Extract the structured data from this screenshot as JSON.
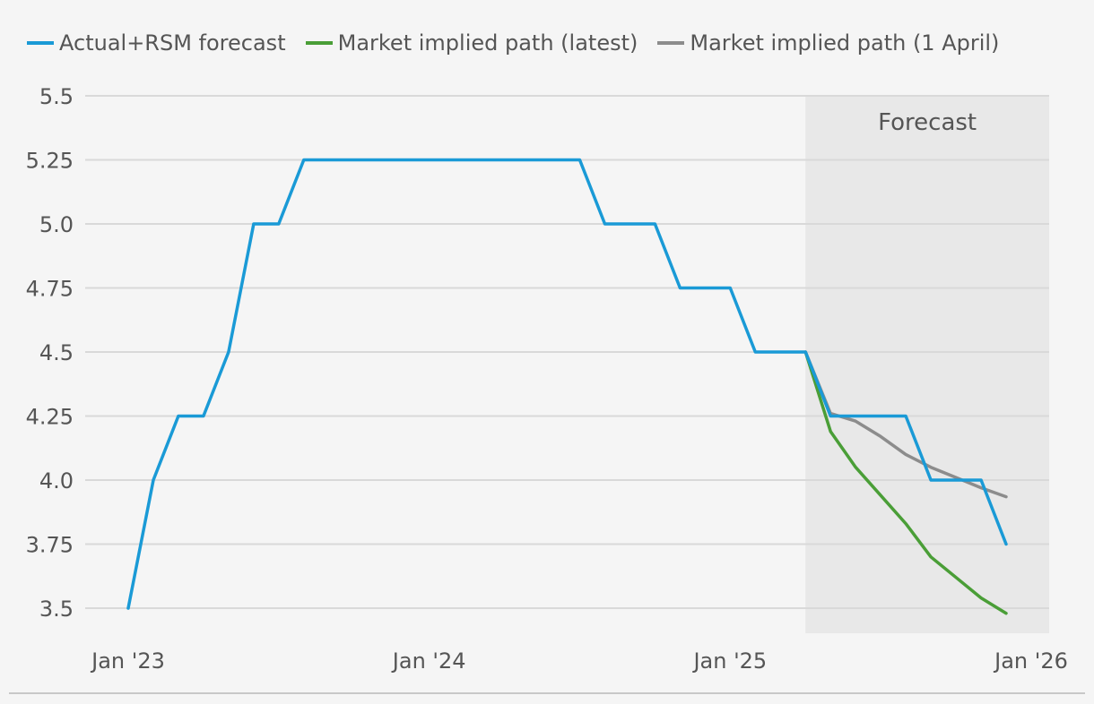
{
  "legend": [
    {
      "label": "Actual+RSM forecast",
      "color": "#1a9ad6"
    },
    {
      "label": "Market implied path (latest)",
      "color": "#4a9e37"
    },
    {
      "label": "Market implied path (1 April)",
      "color": "#8c8c8c"
    }
  ],
  "chart_data": {
    "type": "line",
    "title": "",
    "xlabel": "",
    "ylabel": "",
    "ylim": [
      3.4,
      5.5
    ],
    "xlim": [
      0,
      36
    ],
    "yticks": [
      3.5,
      3.75,
      4.0,
      4.25,
      4.5,
      4.75,
      5.0,
      5.25,
      5.5
    ],
    "ytick_labels": [
      "3.5",
      "3.75",
      "4.0",
      "4.25",
      "4.5",
      "4.75",
      "5.0",
      "5.25",
      "5.5"
    ],
    "xticks": [
      0,
      12,
      24,
      36
    ],
    "xtick_labels": [
      "Jan '23",
      "Jan '24",
      "Jan '25",
      "Jan '26"
    ],
    "shaded_region": {
      "label": "Forecast",
      "x_start": 27,
      "x_end": 36
    },
    "x_unit": "months since Jan 2023",
    "series": [
      {
        "name": "Actual+RSM forecast",
        "color": "#1a9ad6",
        "points": [
          [
            0,
            3.5
          ],
          [
            1,
            4.0
          ],
          [
            2,
            4.25
          ],
          [
            3,
            4.25
          ],
          [
            4,
            4.5
          ],
          [
            5,
            5.0
          ],
          [
            6,
            5.0
          ],
          [
            7,
            5.25
          ],
          [
            18,
            5.25
          ],
          [
            19,
            5.0
          ],
          [
            21,
            5.0
          ],
          [
            22,
            4.75
          ],
          [
            24,
            4.75
          ],
          [
            25,
            4.5
          ],
          [
            27,
            4.5
          ],
          [
            28,
            4.25
          ],
          [
            31,
            4.25
          ],
          [
            32,
            4.0
          ],
          [
            34,
            4.0
          ],
          [
            35,
            3.75
          ]
        ]
      },
      {
        "name": "Market implied path (latest)",
        "color": "#4a9e37",
        "points": [
          [
            27,
            4.5
          ],
          [
            28,
            4.19
          ],
          [
            29,
            4.05
          ],
          [
            30,
            3.94
          ],
          [
            31,
            3.83
          ],
          [
            32,
            3.7
          ],
          [
            33,
            3.62
          ],
          [
            34,
            3.54
          ],
          [
            35,
            3.48
          ]
        ]
      },
      {
        "name": "Market implied path (1 April)",
        "color": "#8c8c8c",
        "points": [
          [
            27,
            4.5
          ],
          [
            28,
            4.26
          ],
          [
            29,
            4.23
          ],
          [
            30,
            4.17
          ],
          [
            31,
            4.1
          ],
          [
            32,
            4.05
          ],
          [
            33,
            4.01
          ],
          [
            34,
            3.97
          ],
          [
            35,
            3.935
          ]
        ]
      }
    ]
  }
}
